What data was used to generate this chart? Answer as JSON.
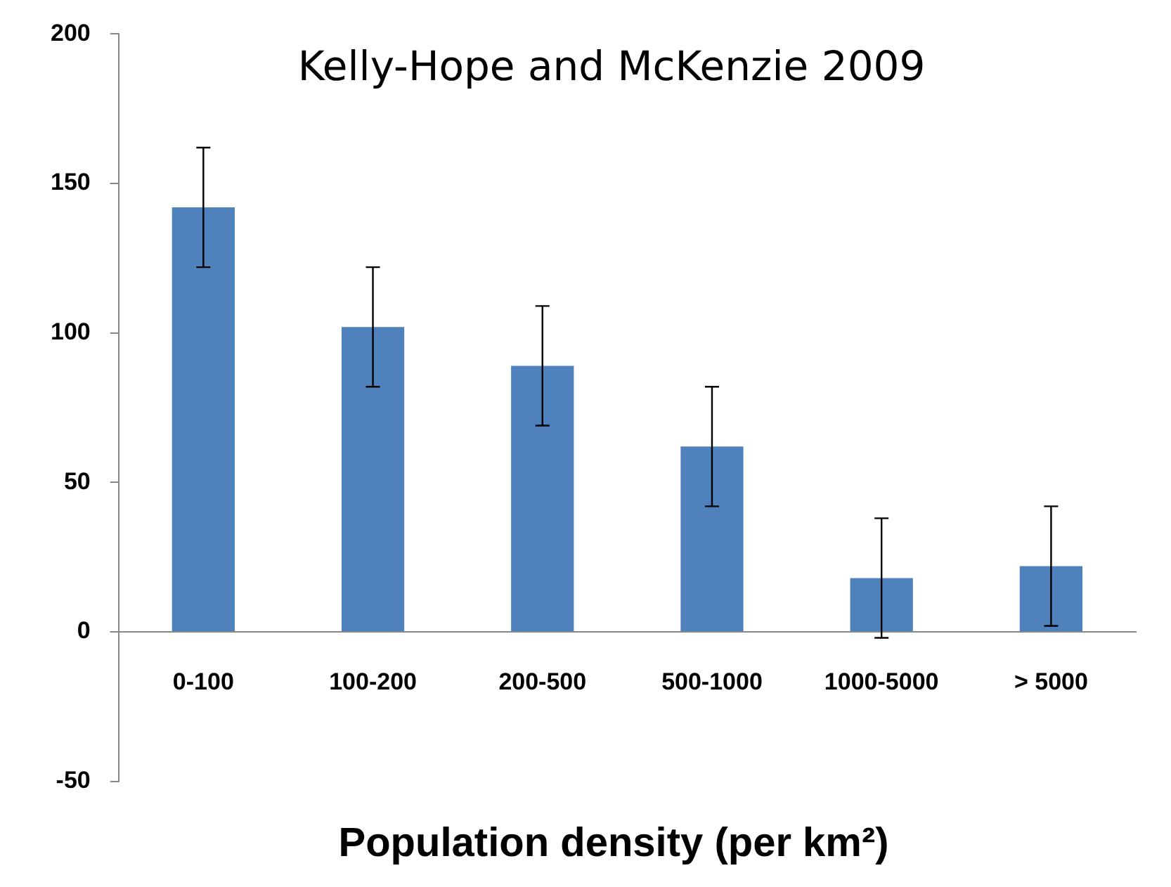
{
  "chart_data": {
    "type": "bar",
    "title": "Kelly-Hope and McKenzie 2009",
    "xlabel": "Population density  (per km²)",
    "categories": [
      "0-100",
      "100-200",
      "200-500",
      "500-1000",
      "1000-5000",
      "> 5000"
    ],
    "values": [
      142,
      102,
      89,
      62,
      18,
      22
    ],
    "errors": [
      20,
      20,
      20,
      20,
      20,
      20
    ],
    "color": "#4f81bd",
    "ylim": [
      -50,
      200
    ],
    "yticks": [
      -50,
      0,
      50,
      100,
      150,
      200
    ],
    "grid": false,
    "legend": false
  }
}
